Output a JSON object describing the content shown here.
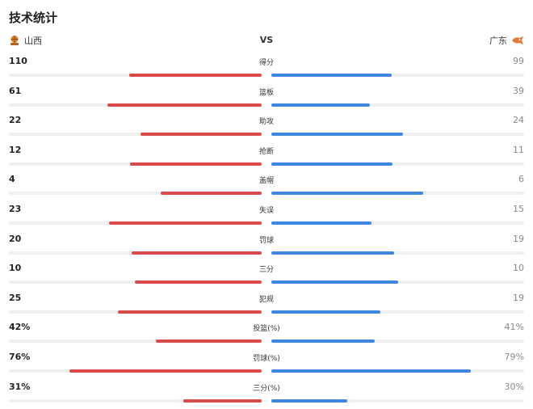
{
  "title": "技术统计",
  "vs": "VS",
  "teams": {
    "left": {
      "name": "山西",
      "logo_icon": "shanxi-team-logo",
      "color": "#d94a4a"
    },
    "right": {
      "name": "广东",
      "logo_icon": "guangdong-team-logo",
      "color": "#3f86de"
    }
  },
  "stats": [
    {
      "label": "得分",
      "left": "110",
      "right": "99",
      "left_fill": 0.525,
      "right_fill": 0.475
    },
    {
      "label": "篮板",
      "left": "61",
      "right": "39",
      "left_fill": 0.61,
      "right_fill": 0.39
    },
    {
      "label": "助攻",
      "left": "22",
      "right": "24",
      "left_fill": 0.478,
      "right_fill": 0.522
    },
    {
      "label": "抢断",
      "left": "12",
      "right": "11",
      "left_fill": 0.522,
      "right_fill": 0.478
    },
    {
      "label": "盖帽",
      "left": "4",
      "right": "6",
      "left_fill": 0.4,
      "right_fill": 0.6
    },
    {
      "label": "失误",
      "left": "23",
      "right": "15",
      "left_fill": 0.605,
      "right_fill": 0.395
    },
    {
      "label": "罚球",
      "left": "20",
      "right": "19",
      "left_fill": 0.513,
      "right_fill": 0.487
    },
    {
      "label": "三分",
      "left": "10",
      "right": "10",
      "left_fill": 0.5,
      "right_fill": 0.5
    },
    {
      "label": "犯规",
      "left": "25",
      "right": "19",
      "left_fill": 0.568,
      "right_fill": 0.432
    },
    {
      "label": "投篮(%)",
      "left": "42%",
      "right": "41%",
      "left_fill": 0.42,
      "right_fill": 0.41
    },
    {
      "label": "罚球(%)",
      "left": "76%",
      "right": "79%",
      "left_fill": 0.76,
      "right_fill": 0.79
    },
    {
      "label": "三分(%)",
      "left": "31%",
      "right": "30%",
      "left_fill": 0.31,
      "right_fill": 0.3
    }
  ]
}
